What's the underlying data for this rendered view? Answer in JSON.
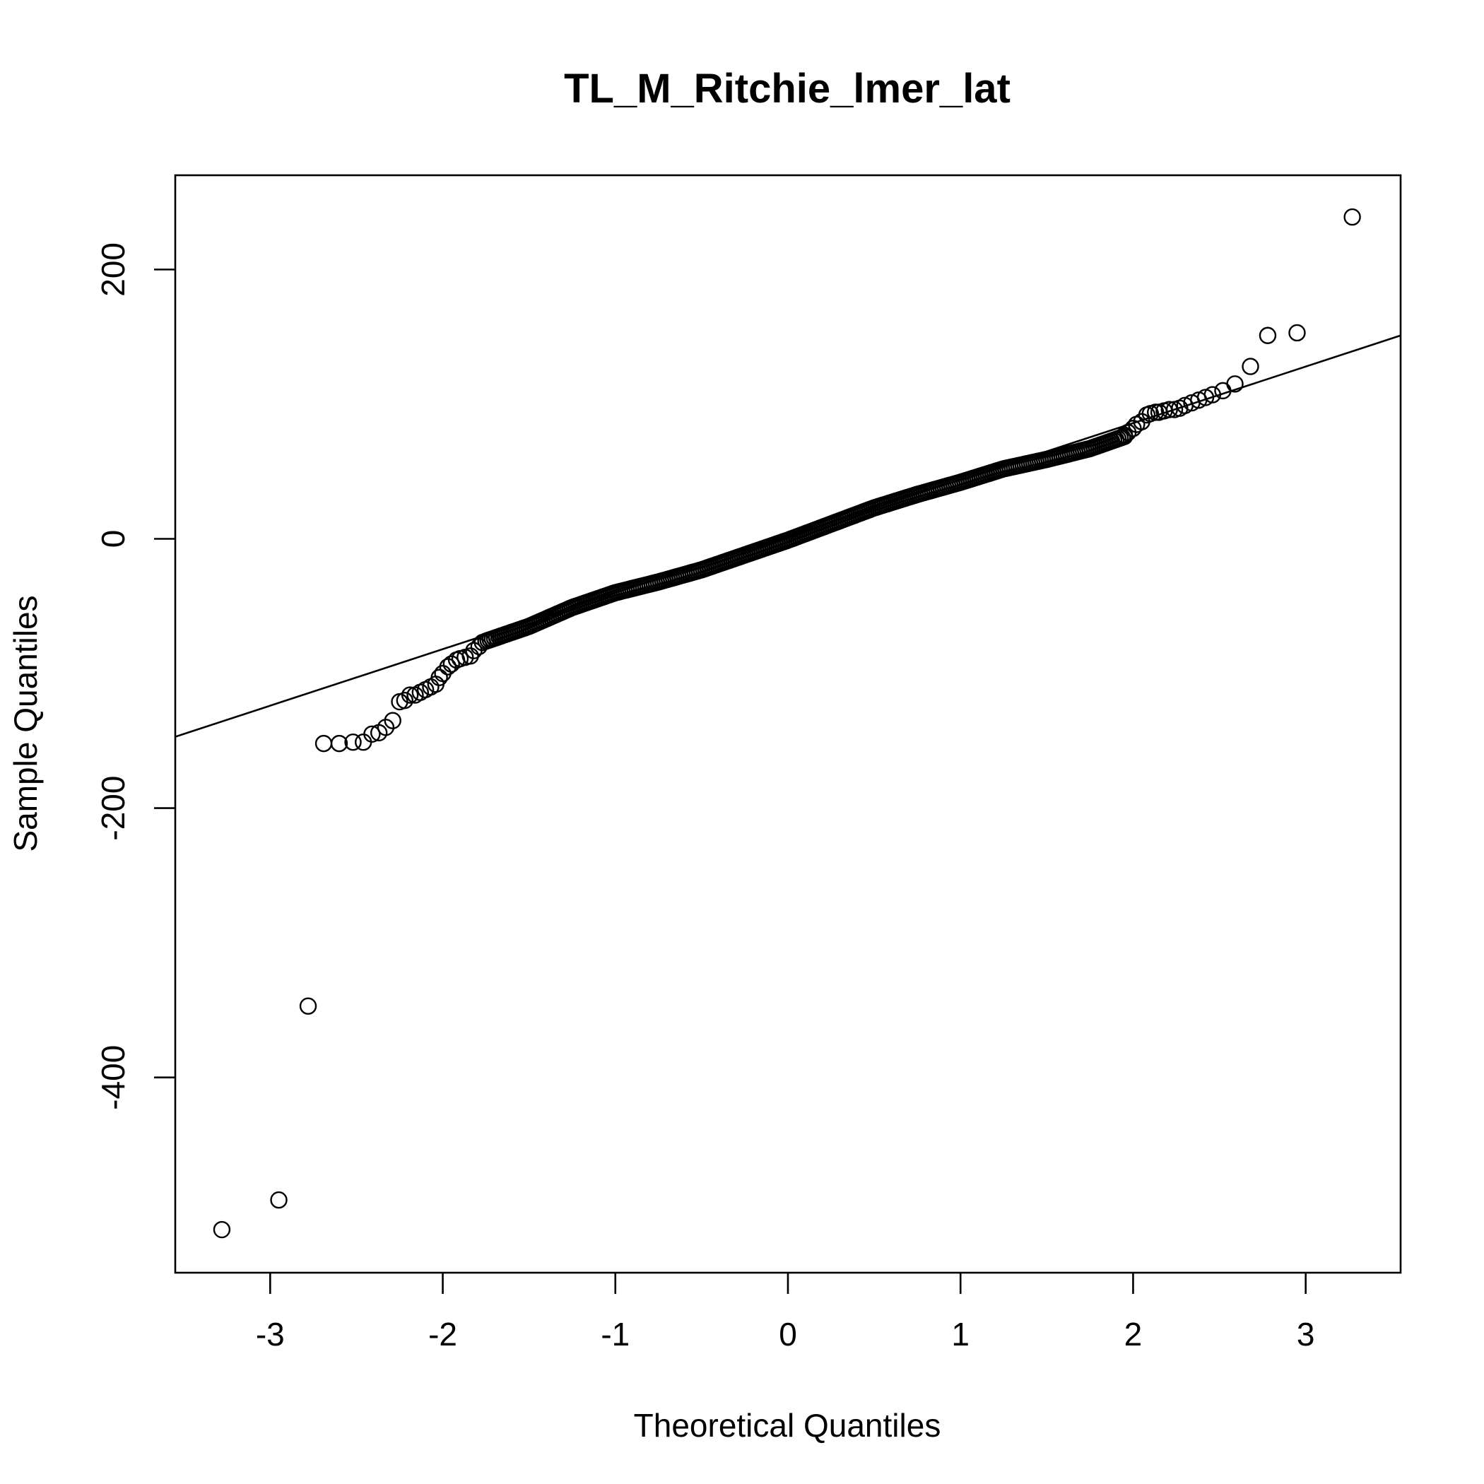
{
  "chart_data": {
    "type": "scatter",
    "title": "TL_M_Ritchie_lmer_lat",
    "xlabel": "Theoretical Quantiles",
    "ylabel": "Sample Quantiles",
    "xlim": [
      -3.55,
      3.55
    ],
    "ylim": [
      -545,
      270
    ],
    "grid": false,
    "legend": "none",
    "x_ticks": [
      -3,
      -2,
      -1,
      0,
      1,
      2,
      3
    ],
    "x_tick_labels": [
      "-3",
      "-2",
      "-1",
      "0",
      "1",
      "2",
      "3"
    ],
    "y_ticks": [
      200,
      0,
      -200,
      -400
    ],
    "y_tick_labels": [
      "200",
      "0",
      "-200",
      "-400"
    ],
    "reference_line": {
      "x": [
        -3.55,
        3.55
      ],
      "y": [
        -147,
        151
      ]
    },
    "outliers": {
      "x": [
        -3.28,
        -2.95,
        -2.78,
        2.78,
        2.95,
        3.27
      ],
      "y": [
        -513,
        -491,
        -347,
        151,
        153,
        239
      ]
    },
    "tail_points": {
      "x": [
        -2.69,
        -2.6,
        -2.52,
        -2.46,
        -2.41,
        -2.37,
        -2.33,
        -2.29,
        -2.25,
        -2.22,
        -2.19,
        -2.16,
        -2.13,
        -2.1,
        -2.07,
        -2.04,
        -2.02,
        -2.0,
        -1.97,
        -1.95,
        -1.92,
        -1.9,
        -1.87,
        -1.84,
        -1.82,
        -1.79,
        -1.77,
        1.95,
        1.97,
        2.0,
        2.02,
        2.05,
        2.08,
        2.1,
        2.13,
        2.15,
        2.18,
        2.21,
        2.24,
        2.27,
        2.3,
        2.34,
        2.38,
        2.42,
        2.46,
        2.52,
        2.59,
        2.68
      ],
      "y": [
        -152,
        -152,
        -151,
        -151,
        -145,
        -144,
        -140,
        -135,
        -121,
        -120,
        -116,
        -116,
        -114,
        -112,
        -110,
        -108,
        -103,
        -100,
        -95,
        -93,
        -90,
        -89,
        -88,
        -87,
        -83,
        -80,
        -77,
        77,
        79,
        82,
        85,
        87,
        92,
        93,
        94,
        94,
        95,
        96,
        96,
        97,
        99,
        101,
        103,
        105,
        107,
        110,
        115,
        128
      ]
    },
    "body_distribution": {
      "x_from": -1.75,
      "x_to": 1.95,
      "y_from": -76,
      "y_to": 76,
      "y_at_x": {
        "x": [
          -1.75,
          -1.5,
          -1.25,
          -1.0,
          -0.75,
          -0.5,
          -0.25,
          0.0,
          0.25,
          0.5,
          0.75,
          1.0,
          1.25,
          1.5,
          1.75,
          1.95
        ],
        "y": [
          -76,
          -65,
          -51,
          -40,
          -32,
          -23,
          -12,
          -1,
          11,
          23,
          33,
          42,
          52,
          59,
          67,
          76
        ]
      }
    }
  }
}
